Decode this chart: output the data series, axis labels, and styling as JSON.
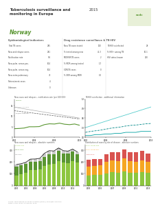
{
  "title_bold": "Tuberculosis surveillance and\nmonitoring in Europe",
  "title_year": "2015",
  "country": "Norway",
  "header_green": "#5a9632",
  "bg_color": "#ffffff",
  "text_color": "#333333",
  "gray_text": "#888888",
  "years_line": [
    2000,
    2001,
    2002,
    2003,
    2004,
    2005,
    2006,
    2007,
    2008,
    2009,
    2010,
    2011,
    2012,
    2013
  ],
  "notif_rate": [
    4.0,
    4.1,
    4.3,
    4.9,
    4.9,
    5.0,
    5.9,
    6.3,
    6.2,
    6.6,
    6.1,
    5.9,
    6.2,
    5.6
  ],
  "eu_avg": [
    14.2,
    13.8,
    13.4,
    13.0,
    12.6,
    12.2,
    11.8,
    11.4,
    11.0,
    10.6,
    10.2,
    9.8,
    9.4,
    9.0
  ],
  "eu_med": [
    12.5,
    12.2,
    11.9,
    11.6,
    11.3,
    11.0,
    10.7,
    10.4,
    10.1,
    9.8,
    9.5,
    9.2,
    8.9,
    8.6
  ],
  "norway_rate_color": "#5a9632",
  "eu_avg_color": "#aaaaaa",
  "eu_med_color": "#555555",
  "tbhiv_years": [
    2000,
    2001,
    2002,
    2003,
    2004,
    2005,
    2006,
    2007,
    2008,
    2009,
    2010,
    2011,
    2012,
    2013
  ],
  "tbhiv_norway": [
    0.05,
    0.05,
    0.08,
    0.08,
    0.1,
    0.1,
    0.12,
    0.12,
    0.15,
    0.15,
    0.15,
    0.18,
    0.18,
    0.18
  ],
  "tbhiv_eu_avg": [
    0.3,
    0.35,
    0.4,
    0.45,
    0.5,
    0.55,
    0.6,
    0.65,
    0.7,
    0.75,
    0.8,
    0.85,
    0.9,
    0.95
  ],
  "tbhiv_eu_med": [
    0.15,
    0.18,
    0.2,
    0.22,
    0.25,
    0.28,
    0.3,
    0.32,
    0.35,
    0.37,
    0.38,
    0.4,
    0.42,
    0.43
  ],
  "tbhiv_norway_color": "#00a0a0",
  "tbhiv_eu_avg_color": "#55cccc",
  "tbhiv_eu_med_color": "#008888",
  "bar_years": [
    2000,
    2001,
    2002,
    2003,
    2004,
    2005,
    2006,
    2007,
    2008,
    2009,
    2010,
    2011,
    2012,
    2013
  ],
  "bar_foreign": [
    85,
    95,
    110,
    130,
    130,
    140,
    165,
    180,
    185,
    210,
    195,
    190,
    205,
    195
  ],
  "bar_native": [
    75,
    75,
    72,
    72,
    72,
    68,
    80,
    85,
    80,
    82,
    78,
    80,
    82,
    72
  ],
  "bar_unknown": [
    18,
    15,
    15,
    22,
    23,
    23,
    29,
    31,
    28,
    27,
    23,
    22,
    22,
    18
  ],
  "bar_color_foreign": "#8dc63f",
  "bar_color_native": "#5a9632",
  "bar_color_unknown": "#cccccc",
  "bar_line_total_color": "#222222",
  "stacked_years": [
    2003,
    2004,
    2005,
    2006,
    2007,
    2008,
    2009,
    2010,
    2011,
    2012,
    2013
  ],
  "stacked_pulm_neg": [
    85,
    88,
    90,
    105,
    112,
    108,
    120,
    110,
    108,
    115,
    108
  ],
  "stacked_smear_pos": [
    75,
    78,
    80,
    95,
    100,
    98,
    108,
    98,
    96,
    100,
    95
  ],
  "stacked_extra": [
    58,
    58,
    55,
    68,
    72,
    75,
    80,
    76,
    76,
    78,
    70
  ],
  "stacked_color_pulm": "#8dc63f",
  "stacked_color_smear": "#f5a623",
  "stacked_color_extra": "#d9534f",
  "plot1_title": "New cases and relapses - notification rate (per 100 000)",
  "plot2_title": "TB/HIV co-infection - additional information",
  "plot3_title": "New cases and relapses - absolute numbers",
  "plot4_title": "Distribution of cases by site of disease - absolute numbers"
}
